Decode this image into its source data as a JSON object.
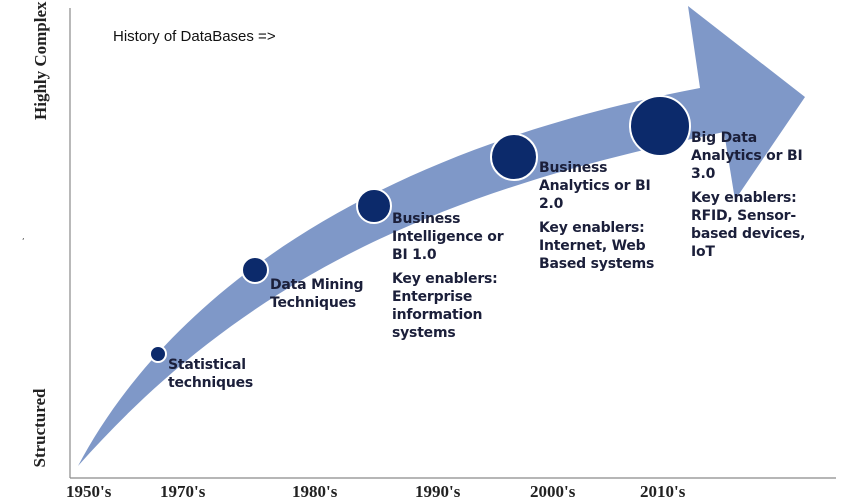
{
  "title": "History of DataBases =>",
  "y_axis": {
    "top_label": "Highly Complex",
    "bottom_label": "Structured"
  },
  "x_axis": {
    "ticks": [
      "1950's",
      "1970's",
      "1980's",
      "1990's",
      "2000's",
      "2010's"
    ]
  },
  "stages": [
    {
      "name": "Statistical\ntechniques",
      "enablers": ""
    },
    {
      "name": "Data Mining\nTechniques",
      "enablers": ""
    },
    {
      "name": "Business\nIntelligence or\nBI 1.0",
      "enablers": "Key enablers:\nEnterprise\ninformation\nsystems"
    },
    {
      "name": "Business\nAnalytics or BI\n2.0",
      "enablers": "Key enablers:\nInternet, Web\nBased systems"
    },
    {
      "name": "Big Data\nAnalytics or BI\n3.0",
      "enablers": "Key enablers:\nRFID, Sensor-\nbased devices,\nIoT"
    }
  ],
  "colors": {
    "arrow": "#7f98c8",
    "node": "#0c2a6b",
    "axis": "#8a8a8a"
  }
}
